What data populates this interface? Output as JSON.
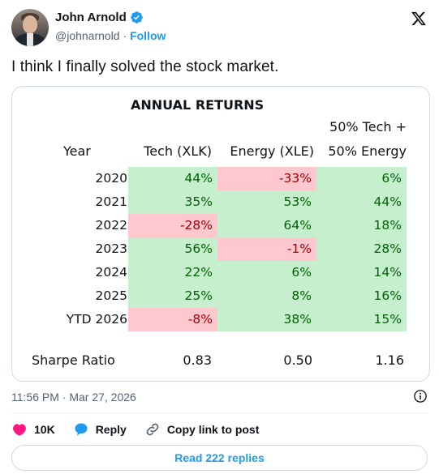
{
  "author": {
    "name": "John Arnold",
    "handle": "@johnarnold",
    "separator": "·",
    "follow_label": "Follow"
  },
  "tweet": {
    "text": "I think I finally solved the stock market."
  },
  "timestamp": "11:56 PM · Mar 27, 2026",
  "actions": {
    "likes": "10K",
    "reply_label": "Reply",
    "copy_label": "Copy link to post"
  },
  "read_replies_label": "Read 222 replies",
  "icons": [
    "verified-badge-icon",
    "x-logo-icon",
    "info-icon",
    "heart-icon",
    "reply-icon",
    "link-icon"
  ],
  "colors": {
    "accent": "#1d9bf0",
    "heart": "#f91880",
    "green_fill": "#c6efce",
    "red_fill": "#ffc7ce"
  },
  "table": {
    "title": "ANNUAL RETURNS",
    "headers": {
      "year": "Year",
      "tech": "Tech (XLK)",
      "energy": "Energy (XLE)",
      "combo_line1": "50% Tech +",
      "combo_line2": "50% Energy"
    },
    "rows": [
      {
        "year": "2020",
        "tech": "44%",
        "tech_sign": "pos",
        "energy": "-33%",
        "energy_sign": "neg",
        "combo": "6%",
        "combo_sign": "pos"
      },
      {
        "year": "2021",
        "tech": "35%",
        "tech_sign": "pos",
        "energy": "53%",
        "energy_sign": "pos",
        "combo": "44%",
        "combo_sign": "pos"
      },
      {
        "year": "2022",
        "tech": "-28%",
        "tech_sign": "neg",
        "energy": "64%",
        "energy_sign": "pos",
        "combo": "18%",
        "combo_sign": "pos"
      },
      {
        "year": "2023",
        "tech": "56%",
        "tech_sign": "pos",
        "energy": "-1%",
        "energy_sign": "neg",
        "combo": "28%",
        "combo_sign": "pos"
      },
      {
        "year": "2024",
        "tech": "22%",
        "tech_sign": "pos",
        "energy": "6%",
        "energy_sign": "pos",
        "combo": "14%",
        "combo_sign": "pos"
      },
      {
        "year": "2025",
        "tech": "25%",
        "tech_sign": "pos",
        "energy": "8%",
        "energy_sign": "pos",
        "combo": "16%",
        "combo_sign": "pos"
      },
      {
        "year": "YTD 2026",
        "tech": "-8%",
        "tech_sign": "neg",
        "energy": "38%",
        "energy_sign": "pos",
        "combo": "15%",
        "combo_sign": "pos"
      }
    ],
    "sharpe": {
      "label": "Sharpe Ratio",
      "tech": "0.83",
      "energy": "0.50",
      "combo": "1.16"
    }
  }
}
